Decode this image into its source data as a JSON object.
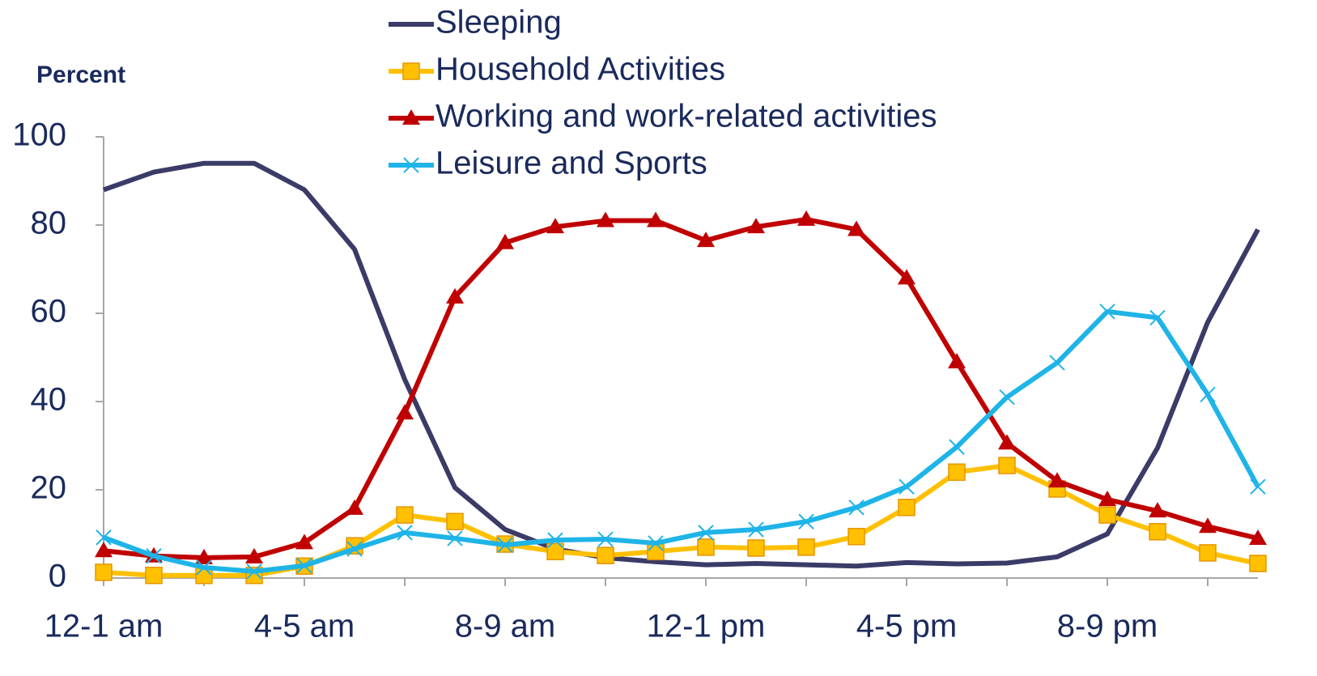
{
  "chart_data": {
    "type": "line",
    "y_label": "Percent",
    "categories": [
      "12-1 am",
      null,
      null,
      null,
      "4-5 am",
      null,
      null,
      null,
      "8-9 am",
      null,
      null,
      null,
      "12-1 pm",
      null,
      null,
      null,
      "4-5 pm",
      null,
      null,
      null,
      "8-9 pm",
      null,
      null,
      null
    ],
    "series": [
      {
        "name": "Sleeping",
        "color": "#3b3b68",
        "marker": "none",
        "values": [
          88,
          92,
          94,
          94,
          88,
          74.5,
          45,
          20.5,
          11,
          6.6,
          4.6,
          3.7,
          3,
          3.3,
          3,
          2.7,
          3.5,
          3.2,
          3.4,
          4.8,
          10,
          29.5,
          58,
          79
        ]
      },
      {
        "name": "Household Activities",
        "color": "#ffc000",
        "marker": "square",
        "values": [
          1.3,
          0.6,
          0.6,
          0.6,
          2.7,
          7.3,
          14.3,
          12.8,
          7.7,
          6,
          5.1,
          6,
          7,
          6.8,
          7,
          9.4,
          16,
          24,
          25.5,
          20.2,
          14.3,
          10.5,
          5.7,
          3.3
        ]
      },
      {
        "name": "Working and work-related activities",
        "color": "#c00000",
        "marker": "triangle",
        "values": [
          6.2,
          5,
          4.6,
          4.8,
          8,
          15.8,
          37.4,
          63.7,
          76,
          79.6,
          81,
          81,
          76.5,
          79.6,
          81.3,
          79,
          68,
          49,
          30.6,
          22,
          17.8,
          15.2,
          11.7,
          9
        ]
      },
      {
        "name": "Leisure and Sports",
        "color": "#1fb4e8",
        "marker": "x",
        "values": [
          9.2,
          5,
          2.4,
          1.5,
          2.8,
          6.6,
          10.3,
          9,
          7.5,
          8.6,
          8.8,
          7.9,
          10.3,
          11,
          12.8,
          16,
          20.7,
          29.7,
          41,
          48.8,
          60.4,
          59,
          41.6,
          20.7
        ]
      }
    ],
    "ylim": [
      0,
      100
    ],
    "yticks": [
      0,
      20,
      40,
      60,
      80,
      100
    ],
    "grid": false,
    "legend": "top"
  }
}
